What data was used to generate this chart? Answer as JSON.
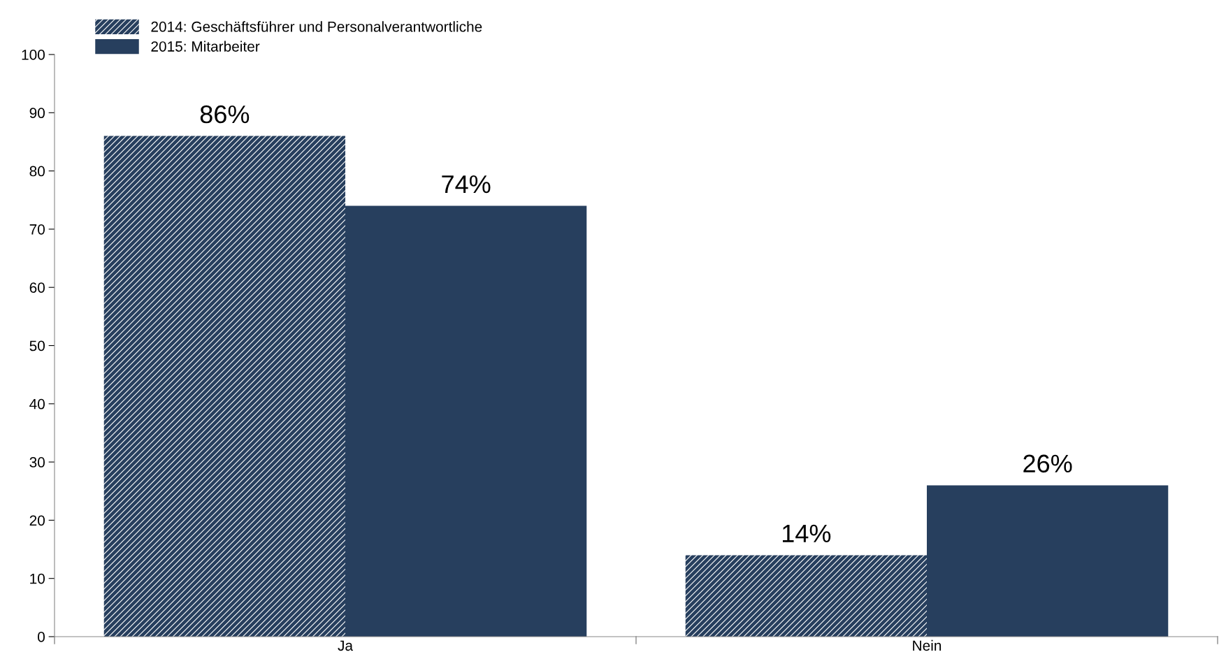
{
  "chart_data": {
    "type": "bar",
    "categories": [
      "Ja",
      "Nein"
    ],
    "series": [
      {
        "name": "2014: Geschäftsführer und Personalverantwortliche",
        "color": "#273f5e",
        "values": [
          86,
          14
        ],
        "value_labels": [
          "86%",
          "14%"
        ]
      },
      {
        "name": "2015: Mitarbeiter",
        "color": "#273f5e",
        "values": [
          74,
          26
        ],
        "value_labels": [
          "74%",
          "26%"
        ]
      }
    ],
    "ylim": [
      0,
      100
    ],
    "yticks": [
      0,
      10,
      20,
      30,
      40,
      50,
      60,
      70,
      80,
      90,
      100
    ],
    "grid": false,
    "legend": "top left"
  }
}
